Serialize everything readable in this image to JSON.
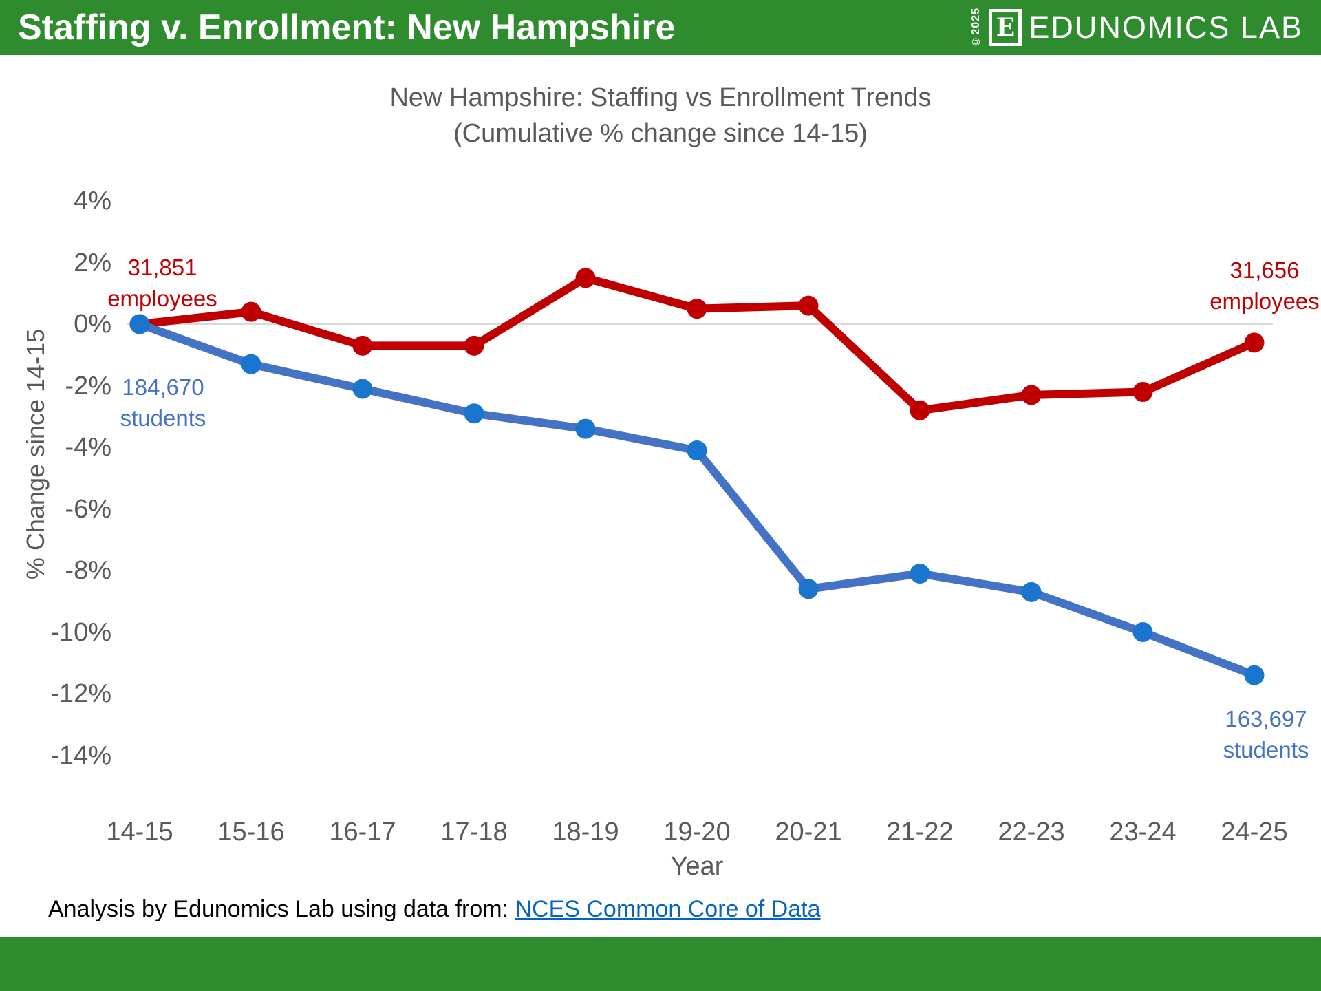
{
  "header": {
    "title_regular": "Staffing v. Enrollment: ",
    "title_bold": "New Hampshire",
    "copyright": "©2025",
    "logo_letter": "E",
    "logo_text": "EDUNOMICS LAB",
    "bg_color": "#2e8b2e"
  },
  "chart_data": {
    "type": "line",
    "title": "New Hampshire: Staffing vs Enrollment Trends",
    "subtitle": "(Cumulative % change since 14-15)",
    "xlabel": "Year",
    "ylabel": "% Change since 14-15",
    "categories": [
      "14-15",
      "15-16",
      "16-17",
      "17-18",
      "18-19",
      "19-20",
      "20-21",
      "21-22",
      "22-23",
      "23-24",
      "24-25"
    ],
    "y_ticks": [
      "4%",
      "2%",
      "0%",
      "-2%",
      "-4%",
      "-6%",
      "-8%",
      "-10%",
      "-12%",
      "-14%"
    ],
    "ylim": [
      -14,
      4
    ],
    "grid": "single horizontal gridline at 0% only",
    "legend": "none (direct series labels at line ends)",
    "series": [
      {
        "name": "employees",
        "color": "#c00000",
        "marker_color": "#c00000",
        "values": [
          0,
          0.4,
          -0.7,
          -0.7,
          1.5,
          0.5,
          0.6,
          -2.8,
          -2.3,
          -2.2,
          -0.6
        ]
      },
      {
        "name": "students",
        "color": "#4472c4",
        "marker_color": "#1a75cf",
        "values": [
          0,
          -1.3,
          -2.1,
          -2.9,
          -3.4,
          -4.1,
          -8.6,
          -8.1,
          -8.7,
          -10.0,
          -11.4
        ]
      }
    ]
  },
  "labels": {
    "employees_start": {
      "value": "31,851",
      "unit": "employees"
    },
    "employees_end": {
      "value": "31,656",
      "unit": "employees"
    },
    "students_start": {
      "value": "184,670",
      "unit": "students"
    },
    "students_end": {
      "value": "163,697",
      "unit": "students"
    }
  },
  "footer": {
    "text": "Analysis by Edunomics Lab using data from: ",
    "link": "NCES Common Core of Data"
  },
  "colors": {
    "header_green": "#2e8b2e",
    "axis_text": "#595959",
    "gridline": "#d9d9d9",
    "link_blue": "#0563c1"
  }
}
